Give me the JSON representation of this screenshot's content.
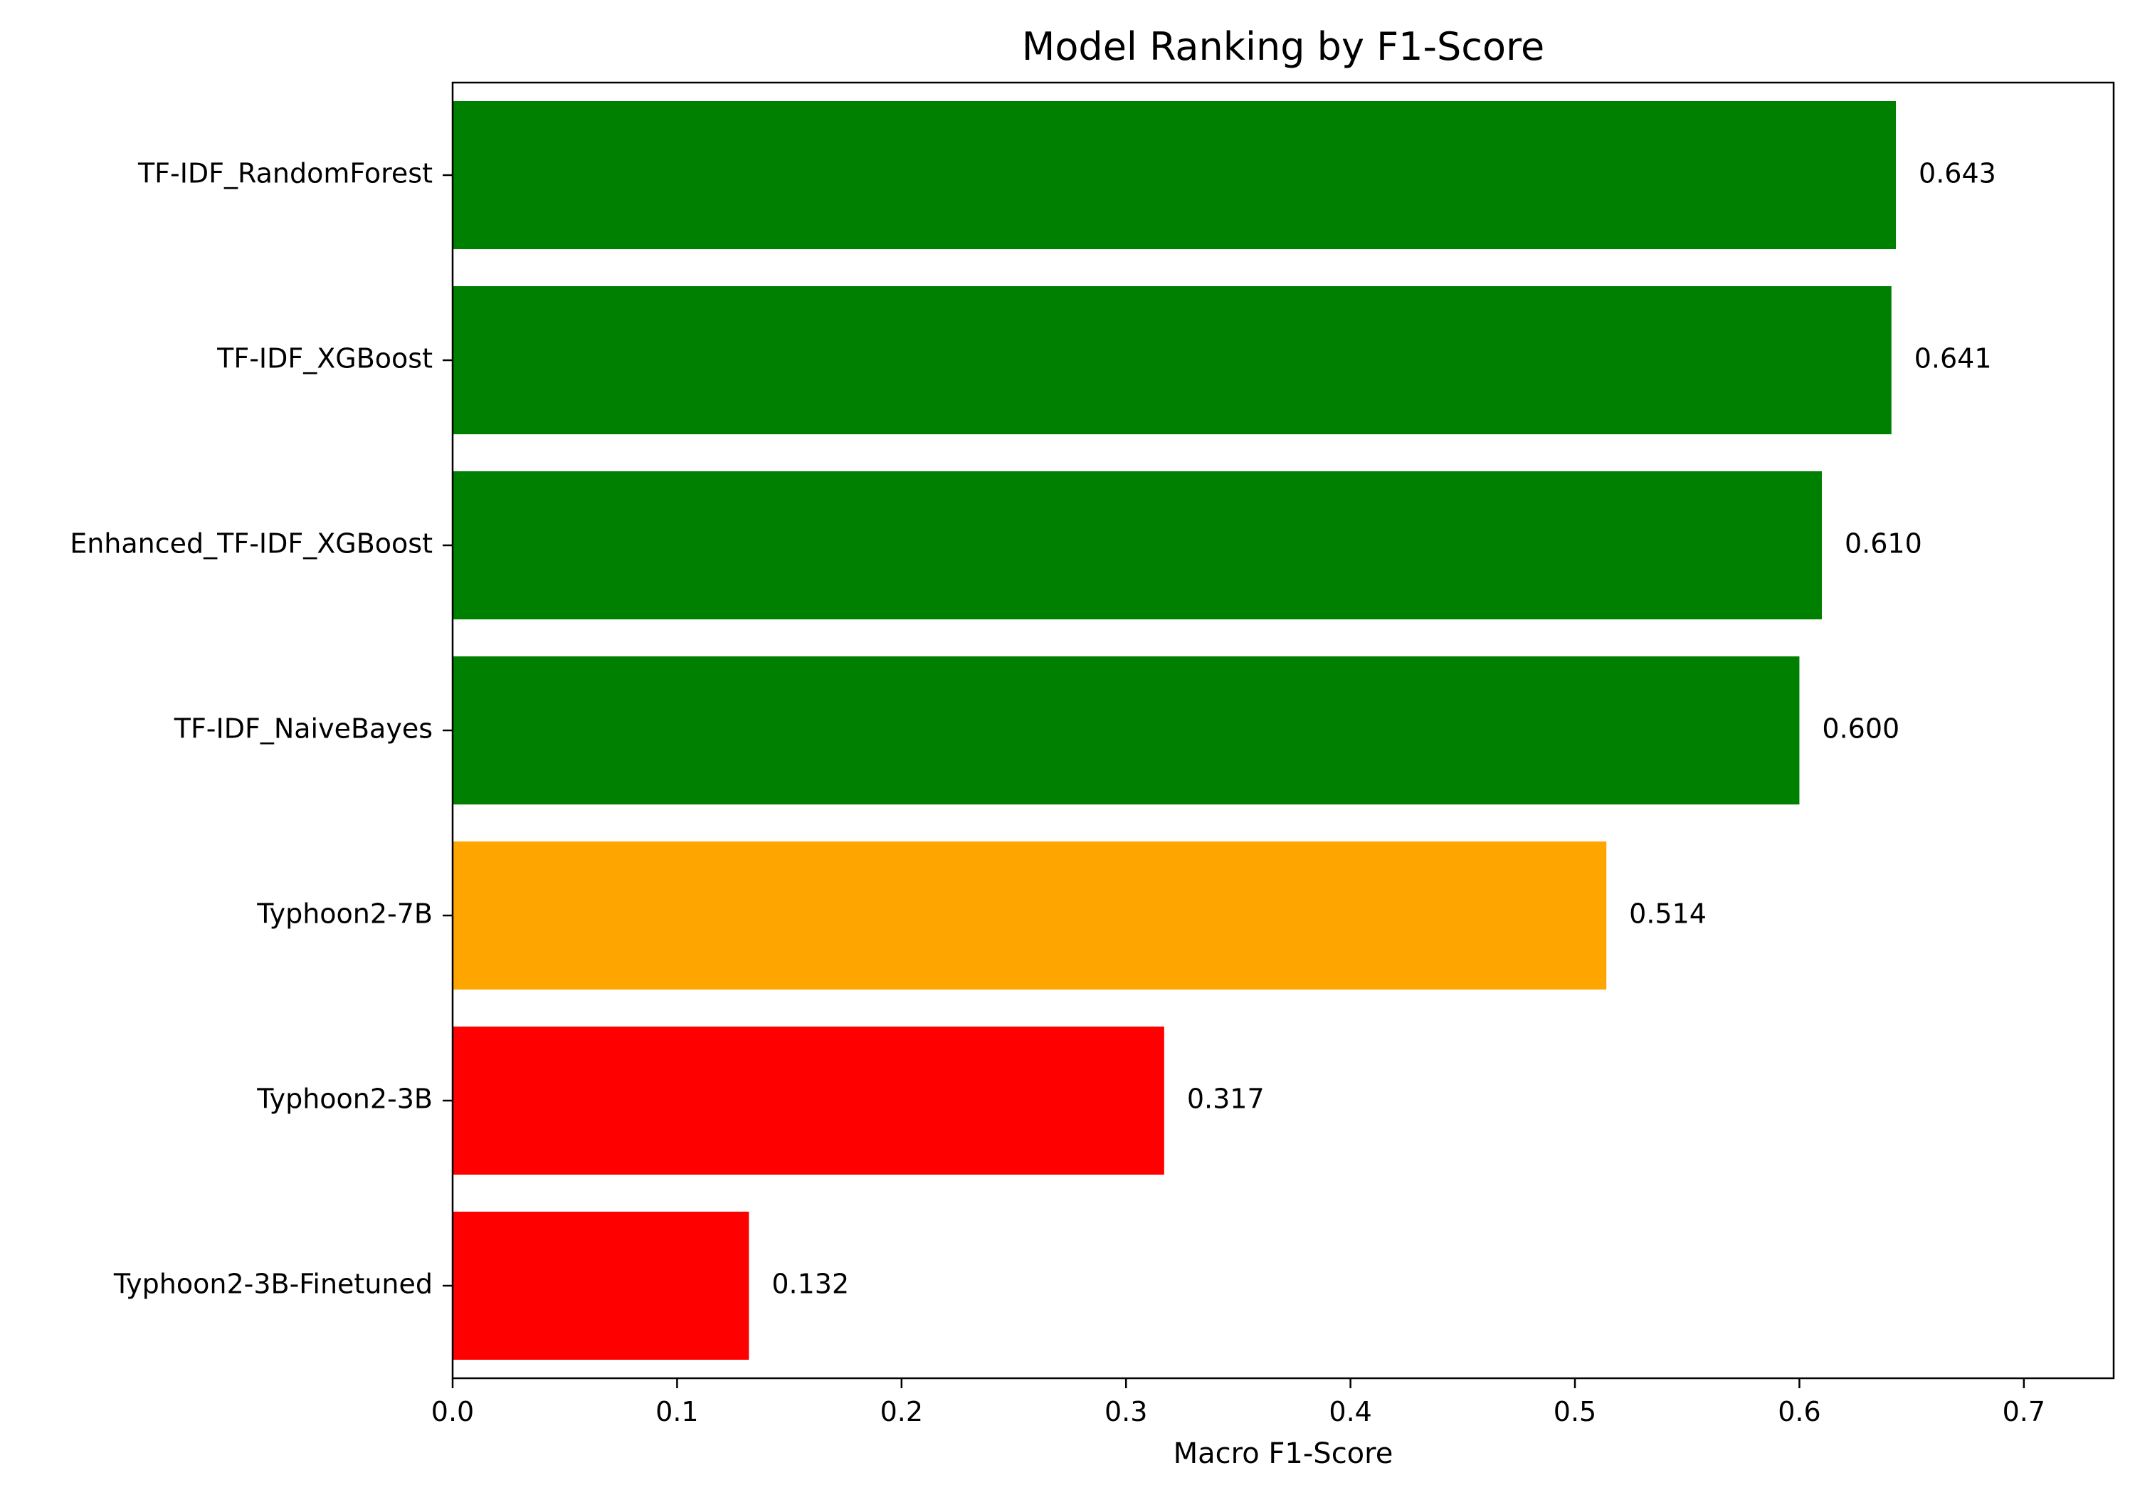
{
  "chart_data": {
    "type": "bar",
    "orientation": "horizontal",
    "title": "Model Ranking by F1-Score",
    "xlabel": "Macro F1-Score",
    "ylabel": "",
    "xlim": [
      0,
      0.74
    ],
    "xticks": [
      0.0,
      0.1,
      0.2,
      0.3,
      0.4,
      0.5,
      0.6,
      0.7
    ],
    "xtick_labels": [
      "0.0",
      "0.1",
      "0.2",
      "0.3",
      "0.4",
      "0.5",
      "0.6",
      "0.7"
    ],
    "grid": false,
    "legend": "none",
    "categories": [
      "TF-IDF_RandomForest",
      "TF-IDF_XGBoost",
      "Enhanced_TF-IDF_XGBoost",
      "TF-IDF_NaiveBayes",
      "Typhoon2-7B",
      "Typhoon2-3B",
      "Typhoon2-3B-Finetuned"
    ],
    "values": [
      0.643,
      0.641,
      0.61,
      0.6,
      0.514,
      0.317,
      0.132
    ],
    "value_labels": [
      "0.643",
      "0.641",
      "0.610",
      "0.600",
      "0.514",
      "0.317",
      "0.132"
    ],
    "bar_colors": [
      "#008000",
      "#008000",
      "#008000",
      "#008000",
      "#ffa500",
      "#ff0000",
      "#ff0000"
    ]
  }
}
